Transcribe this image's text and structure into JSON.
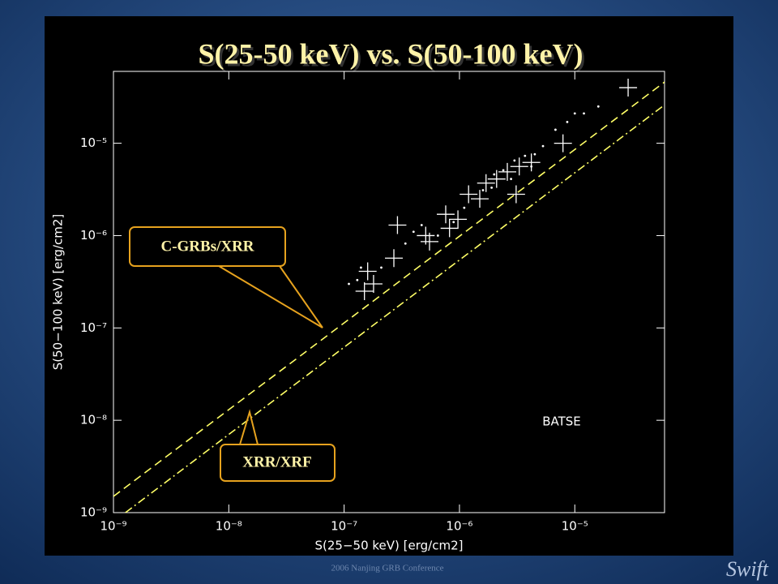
{
  "chart_data": {
    "type": "scatter",
    "title": "S(25-50 keV) vs. S(50-100 keV)",
    "x_label": "S(25−50 keV) [erg/cm2]",
    "y_label": "S(50−100 keV) [erg/cm2]",
    "x_scale": "log",
    "y_scale": "log",
    "xlim": [
      1e-09,
      6e-05
    ],
    "ylim": [
      1e-09,
      6e-05
    ],
    "xticks": [
      {
        "value": 1e-09,
        "label": "10⁻⁹"
      },
      {
        "value": 1e-08,
        "label": "10⁻⁸"
      },
      {
        "value": 1e-07,
        "label": "10⁻⁷"
      },
      {
        "value": 1e-06,
        "label": "10⁻⁶"
      },
      {
        "value": 1e-05,
        "label": "10⁻⁵"
      }
    ],
    "yticks": [
      {
        "value": 1e-09,
        "label": "10⁻⁹"
      },
      {
        "value": 1e-08,
        "label": "10⁻⁸"
      },
      {
        "value": 1e-07,
        "label": "10⁻⁷"
      },
      {
        "value": 1e-06,
        "label": "10⁻⁶"
      },
      {
        "value": 1e-05,
        "label": "10⁻⁵"
      }
    ],
    "series": [
      {
        "color": "#ffff66",
        "style": "dashed",
        "x": [
          1e-09,
          6e-05
        ],
        "values": [
          1.5e-09,
          4.6e-05
        ]
      },
      {
        "color": "#ffff66",
        "style": "dashdot",
        "x": [
          1.27e-09,
          6e-05
        ],
        "values": [
          1e-09,
          2.6e-05
        ]
      },
      {
        "color": "#ffffff",
        "marker": "cross",
        "x": [
          1.6e-07,
          1.8e-07,
          1.5e-07,
          2.7e-07,
          2.9e-07,
          5.1e-07,
          5.5e-07,
          7.6e-07,
          9.7e-07,
          1.2e-06,
          1.7e-06,
          2.1e-06,
          2.6e-06,
          3.3e-06,
          4.2e-06,
          3.1e-06,
          7.9e-06,
          2.9e-05,
          1.5e-06,
          8.2e-07
        ],
        "values": [
          4.1e-07,
          3e-07,
          2.5e-07,
          5.7e-07,
          1.3e-06,
          1e-06,
          8.6e-07,
          1.7e-06,
          1.5e-06,
          2.8e-06,
          3.7e-06,
          4.1e-06,
          4.9e-06,
          5.6e-06,
          6.2e-06,
          2.8e-06,
          1e-05,
          4e-05,
          2.5e-06,
          1.2e-06
        ]
      },
      {
        "color": "#ffffff",
        "marker": "dot",
        "x": [
          1.1e-07,
          1.3e-07,
          1.4e-07,
          2.1e-07,
          3.4e-07,
          4e-07,
          4.7e-07,
          6.5e-07,
          8.9e-07,
          1.1e-06,
          1.6e-06,
          2e-06,
          2.4e-06,
          3e-06,
          3.7e-06,
          4.5e-06,
          5.3e-06,
          6.8e-06,
          8.6e-06,
          1e-05,
          1.2e-05,
          1.6e-05,
          1.9e-06,
          2.8e-06,
          4.2e-06
        ],
        "values": [
          3e-07,
          3.3e-07,
          4.5e-07,
          4.5e-07,
          8.2e-07,
          1.1e-06,
          1.3e-06,
          1e-06,
          1.4e-06,
          2e-06,
          3.1e-06,
          4.6e-06,
          5.1e-06,
          6.5e-06,
          7.3e-06,
          7.6e-06,
          9.3e-06,
          1.4e-05,
          1.7e-05,
          2.1e-05,
          2.1e-05,
          2.5e-05,
          3.3e-06,
          4.1e-06,
          5.6e-06
        ]
      }
    ],
    "annotations": [
      "C-GRBs/XRR",
      "XRR/XRF",
      "BATSE"
    ]
  },
  "footer": {
    "conference": "2006 Nanjing GRB Conference",
    "logo": "Swift"
  }
}
